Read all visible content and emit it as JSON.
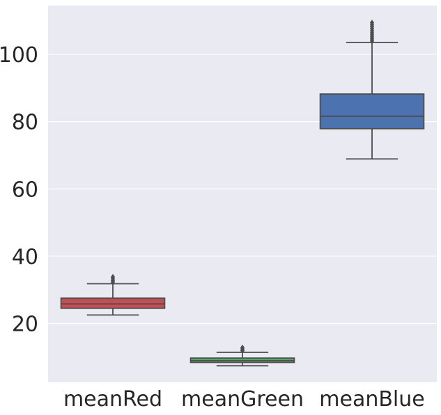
{
  "chart_data": {
    "type": "box",
    "title": "",
    "xlabel": "",
    "ylabel": "",
    "ylim": [
      2.5,
      114.5
    ],
    "yticks": [
      20,
      40,
      60,
      80,
      100
    ],
    "grid": true,
    "background": "#eaeaf2",
    "categories": [
      "meanRed",
      "meanGreen",
      "meanBlue"
    ],
    "boxes": [
      {
        "category": "meanRed",
        "color": "#c44e52",
        "whisker_low": 22.5,
        "q1": 24.5,
        "median": 25.8,
        "q3": 27.5,
        "whisker_high": 31.8,
        "outliers": [
          32.3,
          32.8,
          33.3,
          33.8
        ]
      },
      {
        "category": "meanGreen",
        "color": "#55a868",
        "whisker_low": 7.4,
        "q1": 8.4,
        "median": 8.9,
        "q3": 9.7,
        "whisker_high": 11.4,
        "outliers": [
          11.9,
          12.4,
          12.8
        ]
      },
      {
        "category": "meanBlue",
        "color": "#4c72b0",
        "whisker_low": 68.9,
        "q1": 77.9,
        "median": 81.6,
        "q3": 88.2,
        "whisker_high": 103.5,
        "outliers": [
          104.0,
          104.6,
          105.2,
          105.8,
          106.4,
          107.0,
          107.6,
          108.2,
          108.8,
          109.4
        ]
      }
    ]
  }
}
